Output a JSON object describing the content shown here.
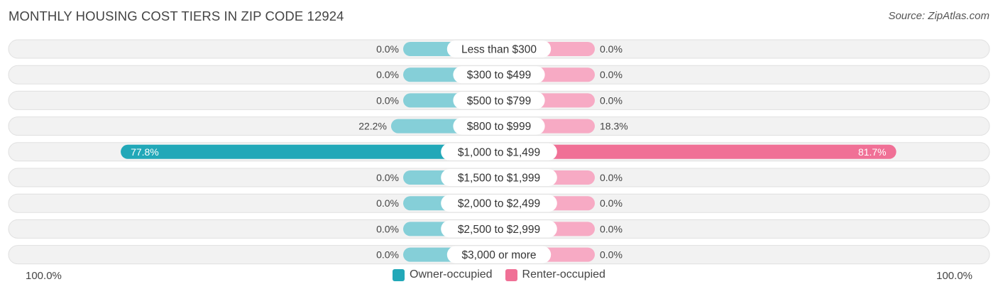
{
  "header": {
    "title": "MONTHLY HOUSING COST TIERS IN ZIP CODE 12924",
    "source": "Source: ZipAtlas.com"
  },
  "axis": {
    "left_label": "100.0%",
    "right_label": "100.0%"
  },
  "legend": {
    "owner_label": "Owner-occupied",
    "renter_label": "Renter-occupied"
  },
  "colors": {
    "owner": "#22a8b8",
    "owner_light": "#85cfd8",
    "renter": "#f07096",
    "renter_light": "#f7aac4",
    "row_background": "#f2f2f2",
    "row_border": "#e0e0e0"
  },
  "chart_data": {
    "type": "bar",
    "orientation": "horizontal-diverging",
    "categories": [
      "Less than $300",
      "$300 to $499",
      "$500 to $799",
      "$800 to $999",
      "$1,000 to $1,499",
      "$1,500 to $1,999",
      "$2,000 to $2,499",
      "$2,500 to $2,999",
      "$3,000 or more"
    ],
    "series": [
      {
        "name": "Owner-occupied",
        "values": [
          0.0,
          0.0,
          0.0,
          22.2,
          77.8,
          0.0,
          0.0,
          0.0,
          0.0
        ],
        "labels": [
          "0.0%",
          "0.0%",
          "0.0%",
          "22.2%",
          "77.8%",
          "0.0%",
          "0.0%",
          "0.0%",
          "0.0%"
        ]
      },
      {
        "name": "Renter-occupied",
        "values": [
          0.0,
          0.0,
          0.0,
          18.3,
          81.7,
          0.0,
          0.0,
          0.0,
          0.0
        ],
        "labels": [
          "0.0%",
          "0.0%",
          "0.0%",
          "18.3%",
          "81.7%",
          "0.0%",
          "0.0%",
          "0.0%",
          "0.0%"
        ]
      }
    ],
    "xlim": [
      -100,
      100
    ],
    "legend_position": "bottom-center"
  }
}
